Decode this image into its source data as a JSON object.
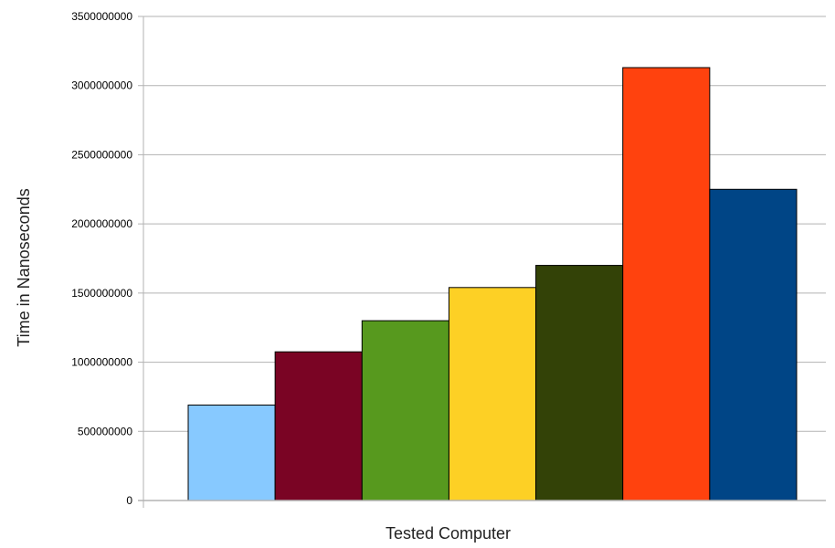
{
  "chart_data": {
    "type": "bar",
    "title": "",
    "xlabel": "Tested Computer",
    "ylabel": "Time in Nanoseconds",
    "ylim": [
      0,
      3500000000
    ],
    "yticks": [
      0,
      500000000,
      1000000000,
      1500000000,
      2000000000,
      2500000000,
      3000000000,
      3500000000
    ],
    "grid": true,
    "legend": "none",
    "categories": [
      "",
      "",
      "",
      "",
      "",
      "",
      ""
    ],
    "values": [
      690000000,
      1075000000,
      1300000000,
      1540000000,
      1700000000,
      3130000000,
      2250000000
    ],
    "colors": [
      "#87c9ff",
      "#7a0424",
      "#57991e",
      "#fdd025",
      "#334207",
      "#ff420e",
      "#004586"
    ]
  }
}
